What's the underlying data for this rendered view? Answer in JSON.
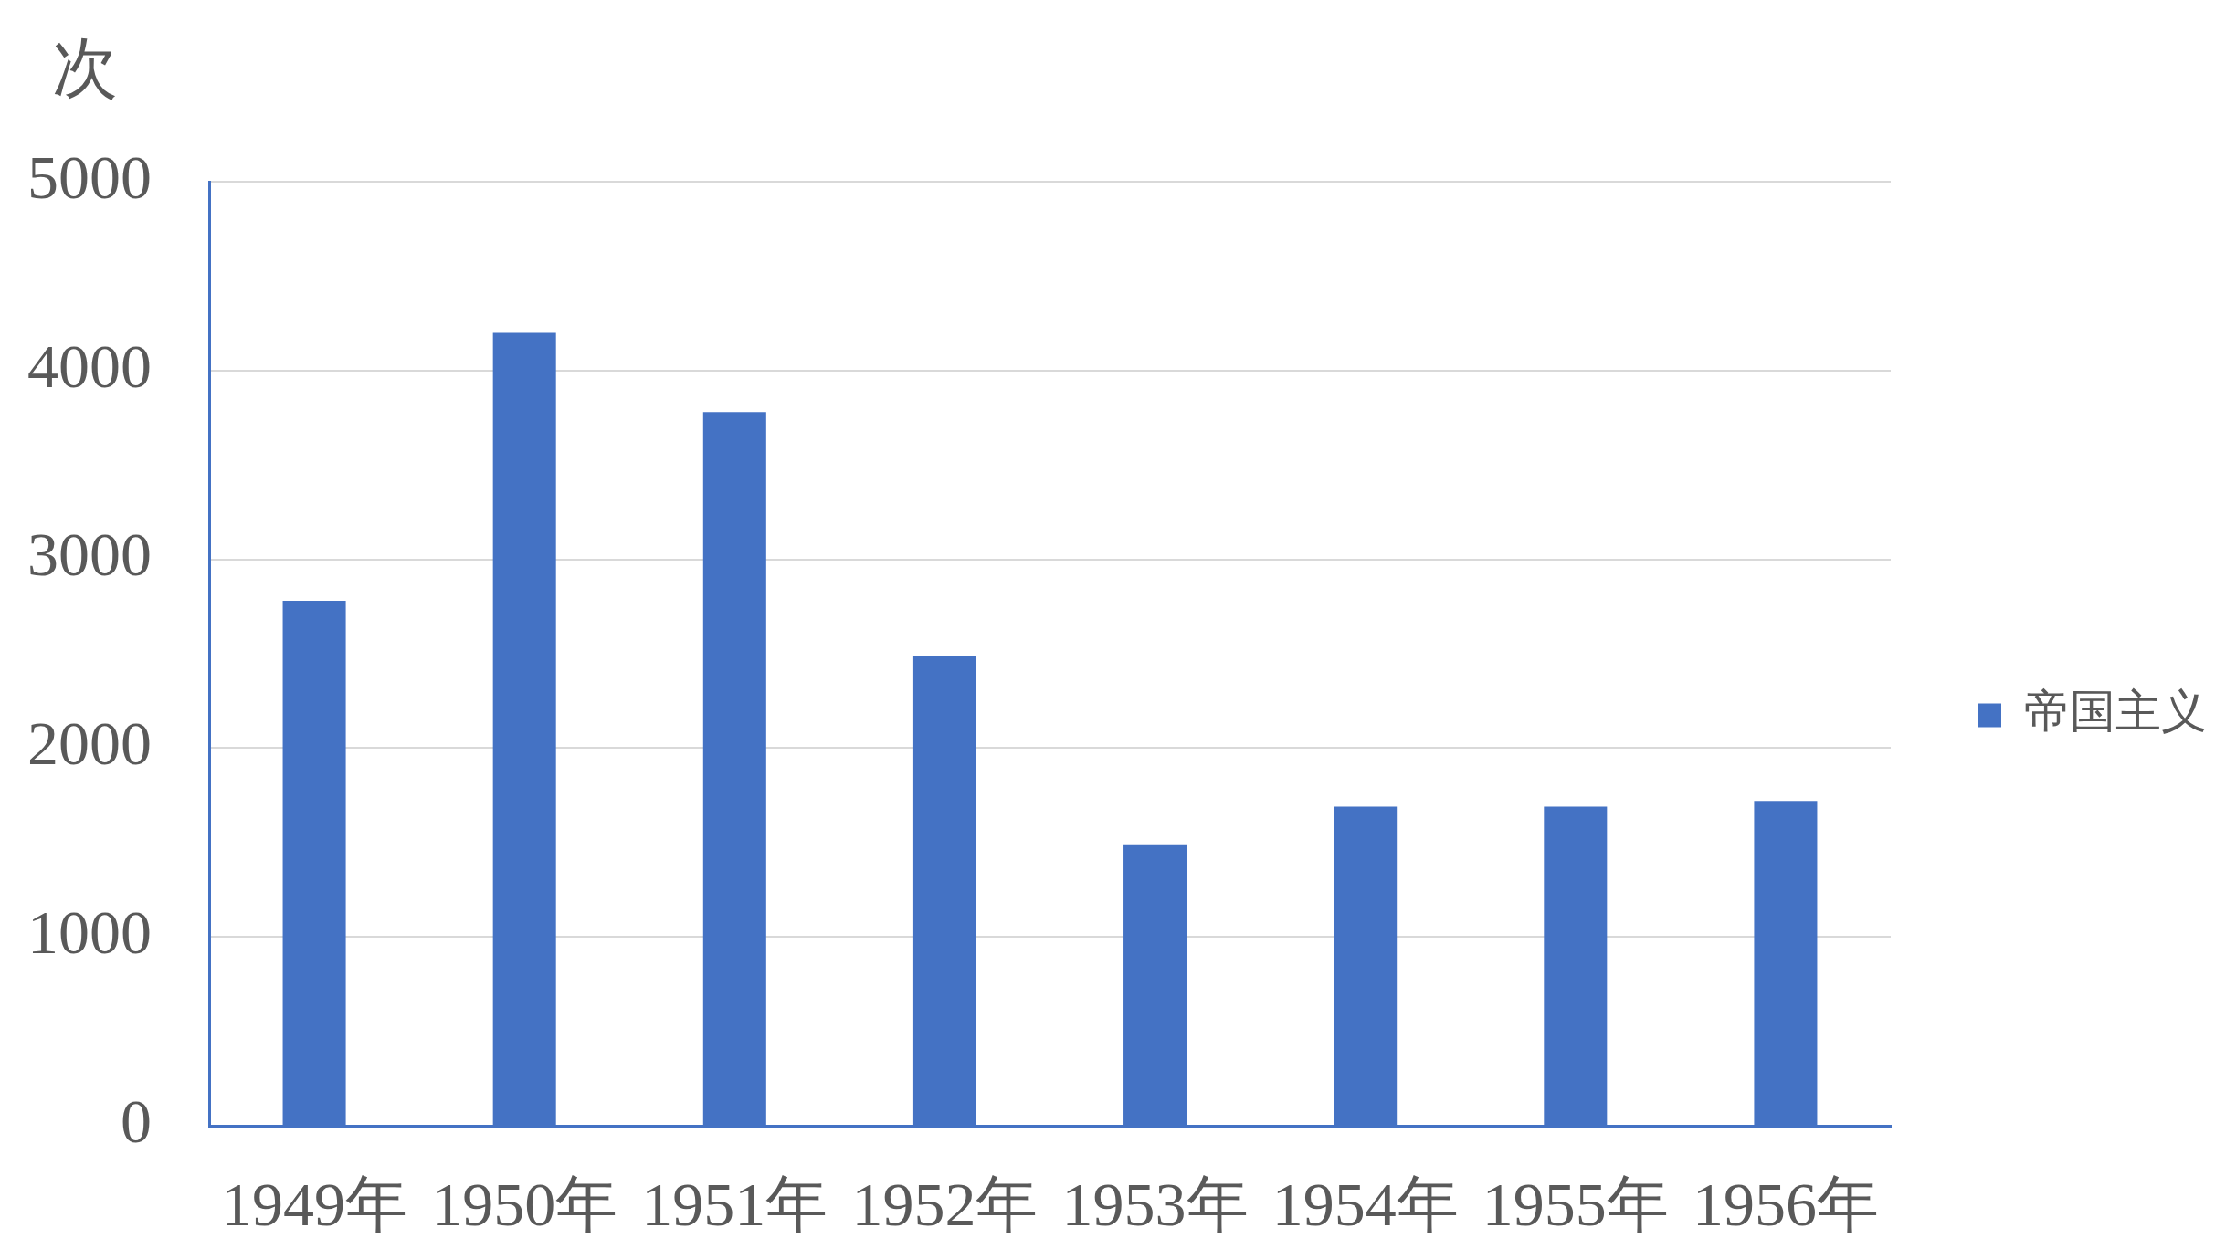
{
  "chart_data": {
    "type": "bar",
    "ylabel": "次",
    "categories": [
      "1949年",
      "1950年",
      "1951年",
      "1952年",
      "1953年",
      "1954年",
      "1955年",
      "1956年"
    ],
    "series": [
      {
        "name": "帝国主义",
        "color": "#4472c4",
        "values": [
          2780,
          4200,
          3780,
          2490,
          1490,
          1690,
          1690,
          1720
        ]
      }
    ],
    "ylim": [
      0,
      5000
    ],
    "yticks": [
      0,
      1000,
      2000,
      3000,
      4000,
      5000
    ],
    "grid": "y",
    "legend": "right"
  }
}
